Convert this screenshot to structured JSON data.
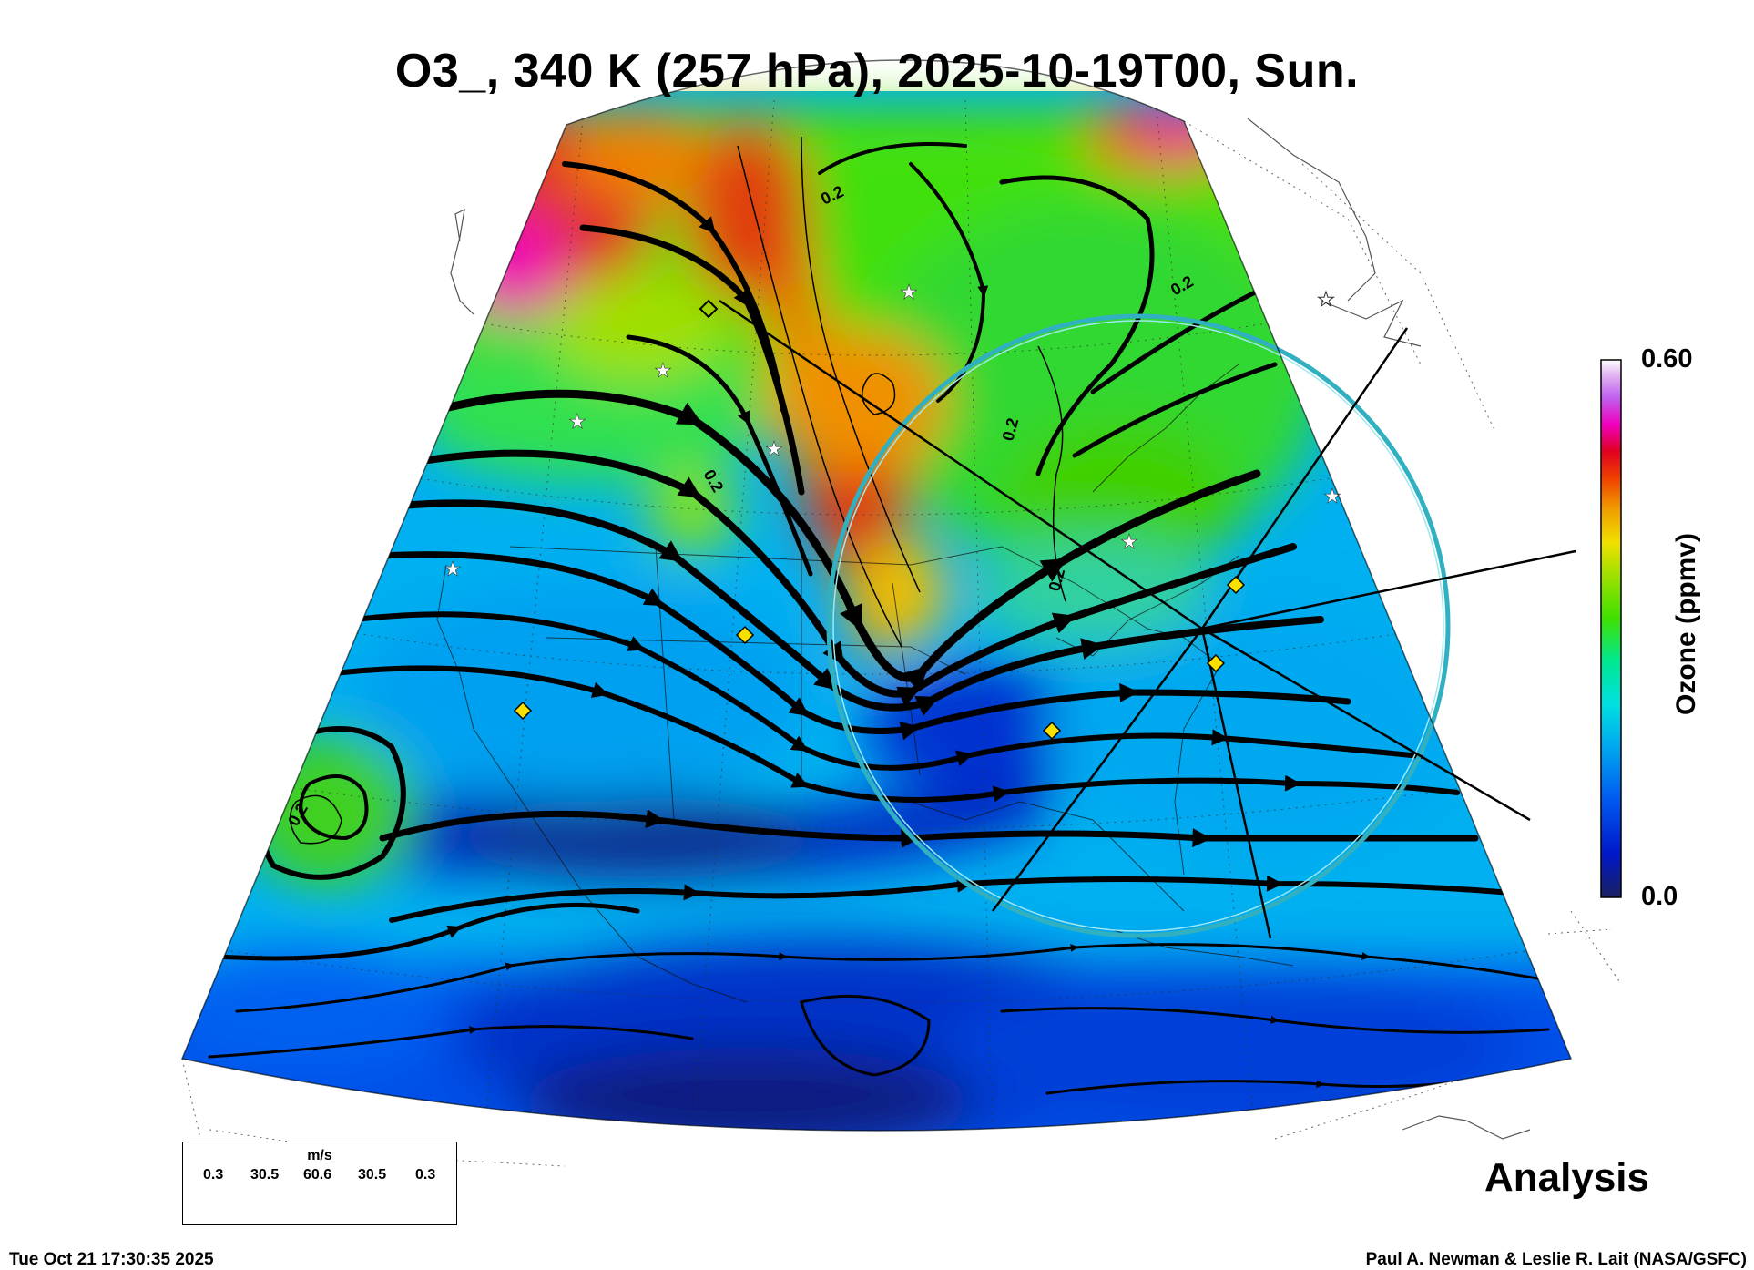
{
  "title": "O3_, 340 K (257 hPa), 2025-10-19T00, Sun.",
  "colorbar": {
    "max_label": "0.60",
    "min_label": "0.0",
    "label": "Ozone (ppmv)",
    "colors": [
      "#1a2060",
      "#0018c8",
      "#0058f0",
      "#00a8f0",
      "#00e0e0",
      "#00e890",
      "#40e000",
      "#a0e000",
      "#f0e000",
      "#f0a000",
      "#f04000",
      "#e00020",
      "#f000c0",
      "#c060f0",
      "#e0b0f0",
      "#ffffff"
    ]
  },
  "contour_label": "0.2",
  "wind_legend": {
    "units": "m/s",
    "values": [
      "0.3",
      "30.5",
      "60.6",
      "30.5",
      "0.3"
    ]
  },
  "analysis_label": "Analysis",
  "timestamp": "Tue Oct 21 17:30:35 2025",
  "credit": "Paul A. Newman & Leslie R. Lait (NASA/GSFC)"
}
